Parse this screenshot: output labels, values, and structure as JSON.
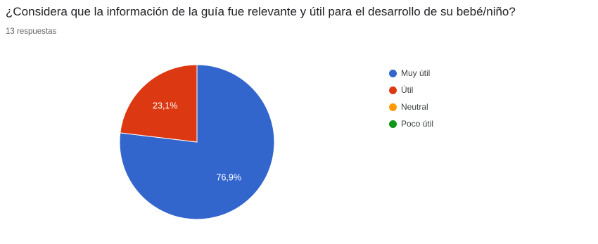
{
  "question_title": "¿Considera que la información de la guía fue relevante y útil para el desarrollo de su bebé/niño?",
  "response_count": "13 respuestas",
  "chart_data": {
    "type": "pie",
    "categories": [
      "Muy útil",
      "Útil",
      "Neutral",
      "Poco útil"
    ],
    "values": [
      76.9,
      23.1,
      0,
      0
    ],
    "labels": [
      "76,9%",
      "23,1%",
      "",
      ""
    ],
    "colors": [
      "#3366cc",
      "#dc3912",
      "#ff9900",
      "#109618"
    ],
    "legend": "right"
  }
}
